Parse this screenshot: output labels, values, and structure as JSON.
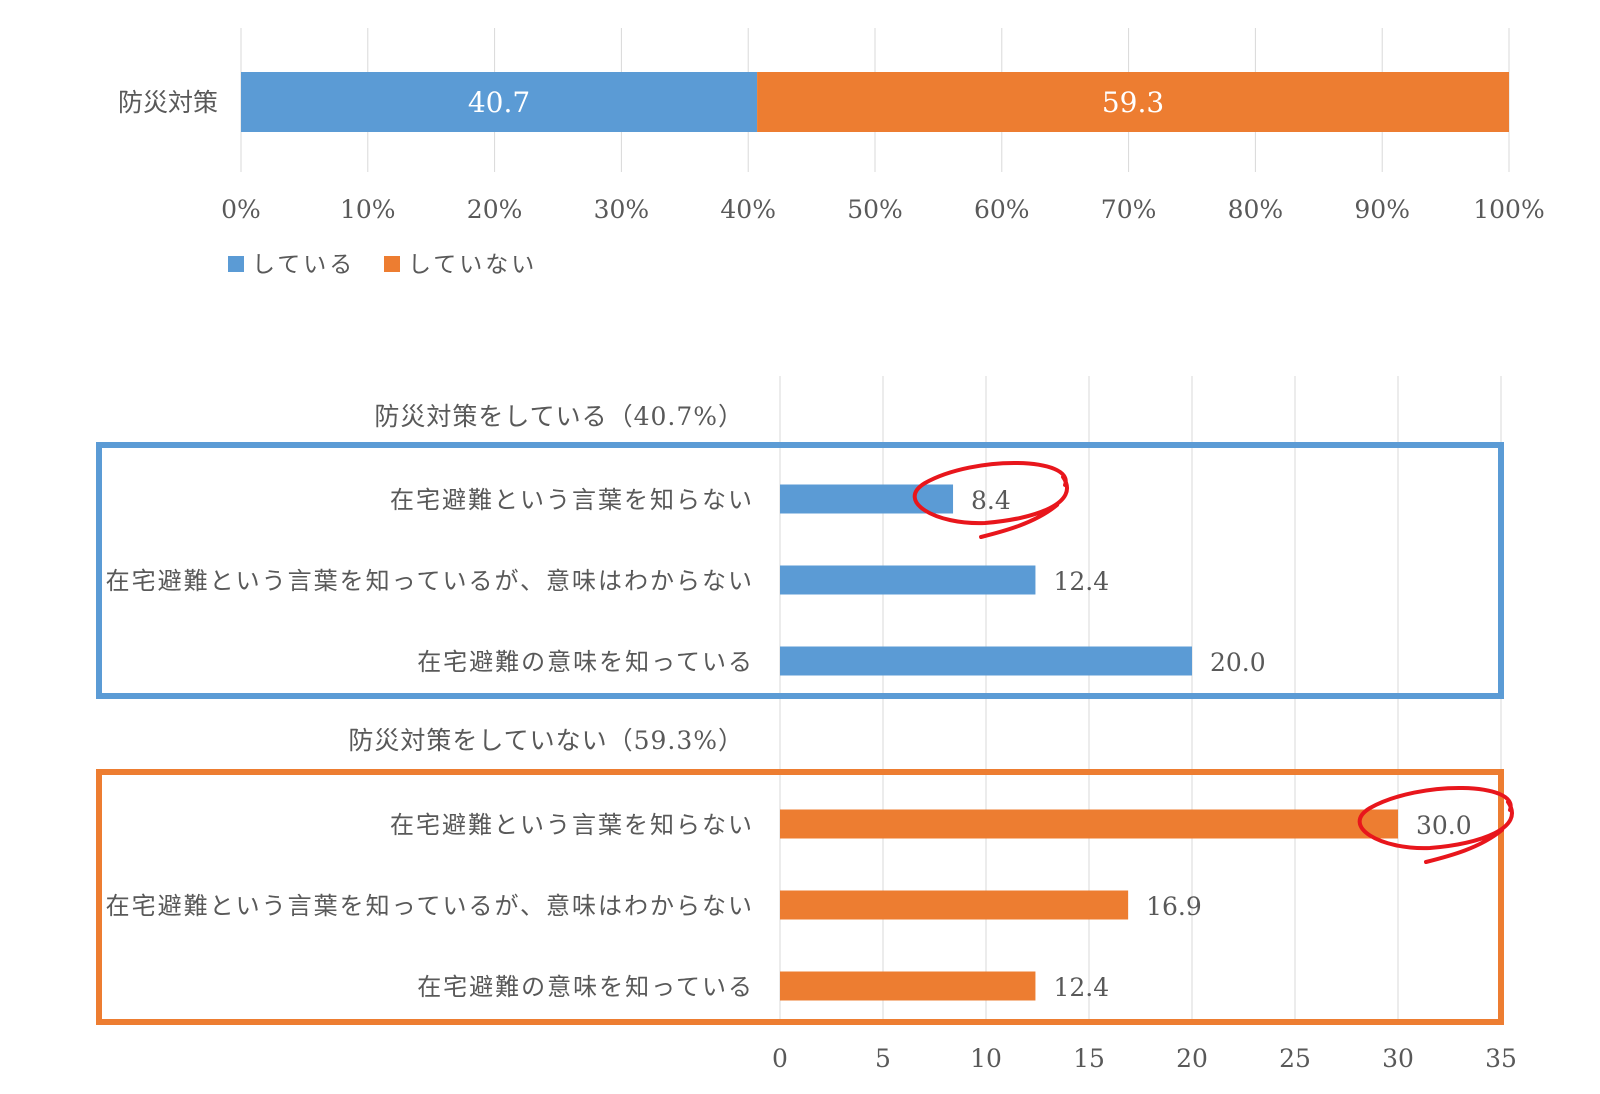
{
  "colors": {
    "yes": "#5B9BD5",
    "no": "#ED7D31",
    "grid": "#D9D9D9",
    "text": "#595959",
    "highlight_circle": "#E8161C"
  },
  "chart_data": [
    {
      "type": "bar",
      "orientation": "horizontal",
      "stacked": true,
      "categories": [
        "防災対策"
      ],
      "series": [
        {
          "name": "している",
          "values": [
            40.7
          ],
          "color": "#5B9BD5"
        },
        {
          "name": "していない",
          "values": [
            59.3
          ],
          "color": "#ED7D31"
        }
      ],
      "x_ticks": [
        "0%",
        "10%",
        "20%",
        "30%",
        "40%",
        "50%",
        "60%",
        "70%",
        "80%",
        "90%",
        "100%"
      ],
      "xlim": [
        0,
        100
      ],
      "grid": true,
      "legend_position": "bottom-left",
      "data_labels": true
    },
    {
      "type": "bar",
      "orientation": "horizontal",
      "xlim": [
        0,
        35
      ],
      "x_ticks": [
        "0",
        "5",
        "10",
        "15",
        "20",
        "25",
        "30",
        "35"
      ],
      "grid": true,
      "data_labels": true,
      "groups": [
        {
          "header": "防災対策をしている（40.7%）",
          "color": "#5B9BD5",
          "items": [
            {
              "label": "在宅避難という言葉を知らない",
              "value": 8.4,
              "value_label": "8.4",
              "highlighted": true
            },
            {
              "label": "在宅避難という言葉を知っているが、意味はわからない",
              "value": 12.4,
              "value_label": "12.4",
              "highlighted": false
            },
            {
              "label": "在宅避難の意味を知っている",
              "value": 20.0,
              "value_label": "20.0",
              "highlighted": false
            }
          ]
        },
        {
          "header": "防災対策をしていない（59.3%）",
          "color": "#ED7D31",
          "items": [
            {
              "label": "在宅避難という言葉を知らない",
              "value": 30.0,
              "value_label": "30.0",
              "highlighted": true
            },
            {
              "label": "在宅避難という言葉を知っているが、意味はわからない",
              "value": 16.9,
              "value_label": "16.9",
              "highlighted": false
            },
            {
              "label": "在宅避難の意味を知っている",
              "value": 12.4,
              "value_label": "12.4",
              "highlighted": false
            }
          ]
        }
      ]
    }
  ]
}
